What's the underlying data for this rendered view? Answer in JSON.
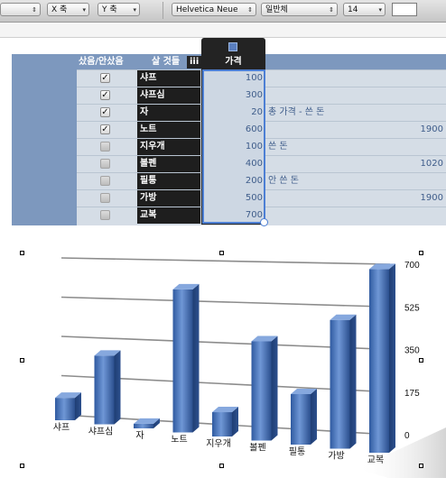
{
  "toolbar": {
    "x_axis": "X 축",
    "y_axis": "Y 축",
    "font_family": "Helvetica Neue",
    "font_style": "일반체",
    "font_size": "14",
    "fill_color": "#ffffff"
  },
  "table": {
    "headers": {
      "bought": "샀음/안샀음",
      "item": "살 것들",
      "price": "가격"
    },
    "rows": [
      {
        "item": "샤프",
        "price": "100",
        "checked": true,
        "note": "",
        "extra": ""
      },
      {
        "item": "샤프심",
        "price": "300",
        "checked": true,
        "note": "",
        "extra": ""
      },
      {
        "item": "자",
        "price": "20",
        "checked": true,
        "note": "총 가격 - 쓴 돈",
        "extra": ""
      },
      {
        "item": "노트",
        "price": "600",
        "checked": true,
        "note": "",
        "extra": "1900"
      },
      {
        "item": "지우개",
        "price": "100",
        "checked": false,
        "note": "쓴 돈",
        "extra": ""
      },
      {
        "item": "볼펜",
        "price": "400",
        "checked": false,
        "note": "",
        "extra": "1020"
      },
      {
        "item": "필통",
        "price": "200",
        "checked": false,
        "note": "안 쓴 돈",
        "extra": ""
      },
      {
        "item": "가방",
        "price": "500",
        "checked": false,
        "note": "",
        "extra": "1900"
      },
      {
        "item": "교복",
        "price": "700",
        "checked": false,
        "note": "",
        "extra": ""
      }
    ],
    "column_menu_icon": "iii"
  },
  "chart_data": {
    "type": "bar",
    "categories": [
      "샤프",
      "샤프심",
      "자",
      "노트",
      "지우개",
      "볼펜",
      "필통",
      "가방",
      "교복"
    ],
    "values": [
      100,
      300,
      20,
      600,
      100,
      400,
      200,
      500,
      700
    ],
    "y_ticks": [
      "0",
      "175",
      "350",
      "525",
      "700"
    ],
    "ylim": [
      0,
      700
    ],
    "grid": true,
    "bar_color": "#4b76bd",
    "style": "3d"
  }
}
